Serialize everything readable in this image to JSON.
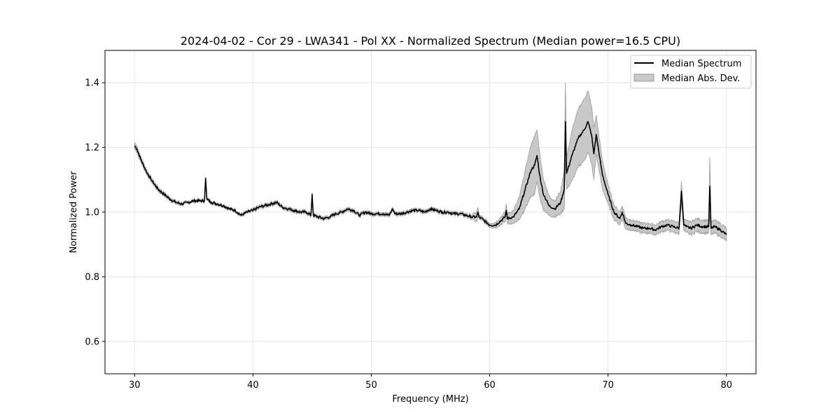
{
  "chart_data": {
    "type": "line",
    "title": "2024-04-02 - Cor 29 - LWA341 - Pol XX - Normalized Spectrum (Median power=16.5 CPU)",
    "xlabel": "Frequency (MHz)",
    "ylabel": "Normalized Power",
    "xlim": [
      27.5,
      82.5
    ],
    "ylim": [
      0.5,
      1.5
    ],
    "xticks": [
      30,
      40,
      50,
      60,
      70,
      80
    ],
    "yticks": [
      0.6,
      0.8,
      1.0,
      1.2,
      1.4
    ],
    "xtick_labels": [
      "30",
      "40",
      "50",
      "60",
      "70",
      "80"
    ],
    "ytick_labels": [
      "0.6",
      "0.8",
      "1.0",
      "1.2",
      "1.4"
    ],
    "grid": true,
    "legend_position": "top-right",
    "legend": [
      {
        "label": "Median Spectrum",
        "kind": "line",
        "color": "#000000"
      },
      {
        "label": "Median Abs. Dev.",
        "kind": "patch",
        "color": "#c8c8c8"
      }
    ],
    "colors": {
      "line": "#000000",
      "band": "#c8c8c8",
      "band_edge": "#9a9a9a",
      "grid": "#e6e6e6"
    },
    "series": [
      {
        "name": "Median Spectrum",
        "x": [
          30.0,
          30.2,
          30.5,
          31.0,
          31.5,
          32.0,
          32.5,
          33.0,
          33.5,
          34.0,
          34.5,
          35.0,
          35.5,
          35.9,
          36.0,
          36.1,
          36.5,
          37.0,
          37.5,
          38.0,
          38.5,
          39.0,
          39.5,
          40.0,
          40.5,
          41.0,
          41.5,
          42.0,
          42.5,
          43.0,
          43.5,
          44.0,
          44.5,
          44.9,
          45.0,
          45.1,
          45.5,
          46.0,
          46.5,
          47.0,
          47.5,
          48.0,
          48.5,
          49.0,
          49.5,
          50.0,
          50.5,
          51.0,
          51.5,
          51.8,
          52.0,
          52.5,
          53.0,
          53.5,
          54.0,
          54.5,
          55.0,
          55.5,
          56.0,
          56.5,
          57.0,
          57.5,
          58.0,
          58.5,
          58.9,
          59.0,
          59.1,
          59.5,
          60.0,
          60.5,
          61.0,
          61.3,
          61.4,
          61.5,
          62.0,
          62.5,
          63.0,
          63.5,
          63.8,
          64.0,
          64.2,
          64.5,
          65.0,
          65.5,
          66.0,
          66.3,
          66.4,
          66.5,
          67.0,
          67.5,
          68.0,
          68.3,
          68.6,
          68.8,
          69.0,
          69.5,
          70.0,
          70.5,
          71.0,
          71.2,
          71.5,
          72.0,
          72.5,
          73.0,
          73.5,
          74.0,
          74.5,
          75.0,
          75.5,
          76.0,
          76.2,
          76.4,
          76.6,
          77.0,
          77.5,
          78.0,
          78.5,
          78.6,
          78.7,
          79.0,
          79.5,
          80.0
        ],
        "values": [
          1.205,
          1.195,
          1.165,
          1.125,
          1.095,
          1.07,
          1.055,
          1.04,
          1.03,
          1.025,
          1.03,
          1.035,
          1.035,
          1.035,
          1.105,
          1.04,
          1.03,
          1.025,
          1.02,
          1.01,
          1.005,
          0.99,
          1.0,
          1.005,
          1.015,
          1.02,
          1.025,
          1.03,
          1.015,
          1.01,
          1.005,
          1.0,
          1.0,
          0.99,
          1.055,
          0.99,
          0.985,
          0.98,
          0.985,
          0.995,
          1.0,
          1.01,
          1.005,
          0.99,
          1.0,
          0.995,
          0.995,
          0.995,
          0.99,
          1.01,
          0.995,
          0.995,
          1.0,
          1.005,
          1.005,
          1.0,
          1.01,
          1.005,
          1.0,
          1.0,
          0.995,
          0.995,
          0.99,
          0.985,
          0.985,
          1.0,
          0.985,
          0.975,
          0.96,
          0.96,
          0.975,
          0.985,
          1.005,
          0.98,
          0.985,
          1.01,
          1.07,
          1.13,
          1.145,
          1.175,
          1.12,
          1.06,
          1.02,
          1.01,
          1.03,
          1.07,
          1.28,
          1.12,
          1.18,
          1.23,
          1.255,
          1.28,
          1.24,
          1.18,
          1.24,
          1.12,
          1.055,
          1.0,
          0.98,
          1.0,
          0.965,
          0.96,
          0.955,
          0.95,
          0.95,
          0.945,
          0.955,
          0.96,
          0.955,
          0.95,
          1.065,
          0.96,
          0.955,
          0.95,
          0.96,
          0.955,
          0.955,
          1.08,
          0.95,
          0.955,
          0.945,
          0.93
        ],
        "dev": [
          0.01,
          0.01,
          0.008,
          0.007,
          0.006,
          0.006,
          0.005,
          0.005,
          0.005,
          0.004,
          0.004,
          0.004,
          0.004,
          0.004,
          0.004,
          0.004,
          0.004,
          0.004,
          0.004,
          0.004,
          0.004,
          0.004,
          0.004,
          0.005,
          0.005,
          0.005,
          0.005,
          0.005,
          0.005,
          0.005,
          0.005,
          0.005,
          0.005,
          0.005,
          0.005,
          0.005,
          0.005,
          0.005,
          0.005,
          0.005,
          0.005,
          0.005,
          0.005,
          0.005,
          0.005,
          0.005,
          0.005,
          0.005,
          0.005,
          0.005,
          0.005,
          0.005,
          0.005,
          0.005,
          0.005,
          0.005,
          0.005,
          0.005,
          0.005,
          0.005,
          0.005,
          0.005,
          0.005,
          0.006,
          0.015,
          0.015,
          0.006,
          0.006,
          0.006,
          0.008,
          0.012,
          0.015,
          0.02,
          0.015,
          0.02,
          0.035,
          0.06,
          0.08,
          0.09,
          0.08,
          0.07,
          0.05,
          0.03,
          0.025,
          0.035,
          0.06,
          0.12,
          0.05,
          0.08,
          0.09,
          0.095,
          0.095,
          0.09,
          0.08,
          0.06,
          0.045,
          0.03,
          0.022,
          0.02,
          0.02,
          0.018,
          0.015,
          0.015,
          0.015,
          0.015,
          0.015,
          0.016,
          0.016,
          0.017,
          0.018,
          0.03,
          0.018,
          0.018,
          0.02,
          0.02,
          0.02,
          0.02,
          0.09,
          0.02,
          0.02,
          0.02,
          0.02
        ]
      }
    ]
  }
}
